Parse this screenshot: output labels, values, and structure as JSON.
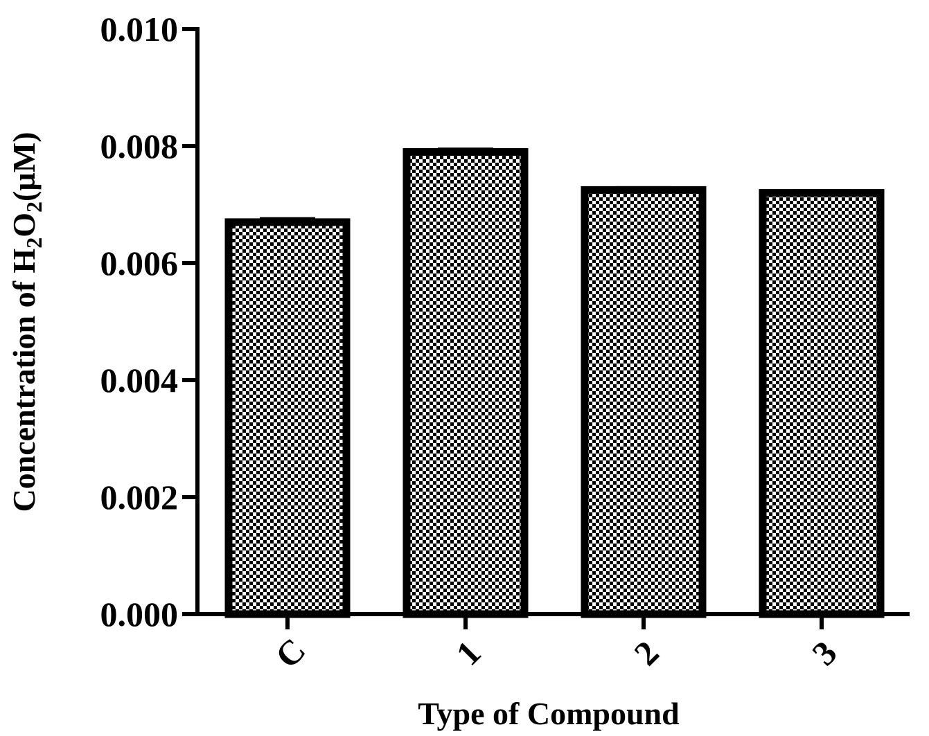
{
  "chart_data": {
    "type": "bar",
    "categories": [
      "C",
      "1",
      "2",
      "3"
    ],
    "values": [
      0.0067,
      0.0079,
      0.00725,
      0.0072
    ],
    "errors": [
      5e-05,
      4e-05,
      3e-05,
      3e-05
    ],
    "xlabel": "Type of Compound",
    "ylabel_parts": {
      "prefix": "Concentration of H",
      "sub1": "2",
      "mid": "O",
      "sub2": "2",
      "suffix": "(µM)"
    },
    "ylim": [
      0,
      0.01
    ],
    "yticks": [
      "0.000",
      "0.002",
      "0.004",
      "0.006",
      "0.008",
      "0.010"
    ],
    "ytick_values": [
      0,
      0.002,
      0.004,
      0.006,
      0.008,
      0.01
    ],
    "grid": false,
    "legend": "none",
    "bar_pattern": "checkerboard",
    "colors": {
      "bar_edge": "#000000",
      "pattern_dark": "#000000",
      "pattern_light": "#ffffff"
    }
  }
}
